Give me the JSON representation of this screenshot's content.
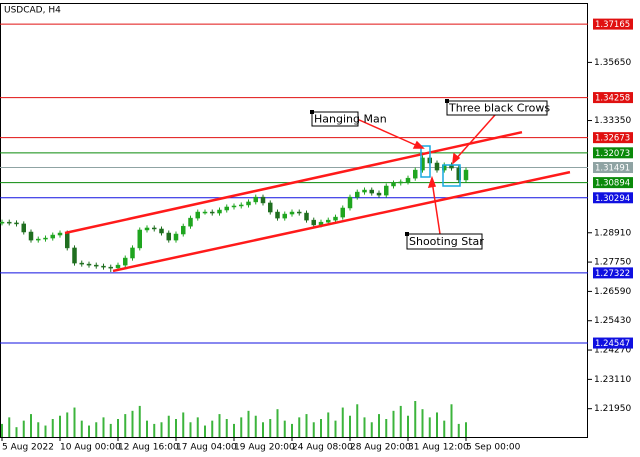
{
  "chart_data": {
    "type": "candlestick",
    "title": "USDCAD, H4",
    "categories": [
      "5 Aug 2022",
      null,
      null,
      null,
      null,
      null,
      null,
      null,
      "10 Aug 00:00",
      null,
      null,
      null,
      null,
      null,
      null,
      null,
      "12 Aug 16:00",
      null,
      null,
      null,
      null,
      null,
      null,
      null,
      "17 Aug 04:00",
      null,
      null,
      null,
      null,
      null,
      null,
      null,
      "19 Aug 20:00",
      null,
      null,
      null,
      null,
      null,
      null,
      null,
      "24 Aug 08:00",
      null,
      null,
      null,
      null,
      null,
      null,
      null,
      "28 Aug 20:00",
      null,
      null,
      null,
      null,
      null,
      null,
      null,
      "31 Aug 12:00",
      null,
      null,
      null,
      null,
      null,
      null,
      null,
      "5 Sep 00:00"
    ],
    "open": [
      1.293,
      1.2933,
      1.293,
      1.2926,
      1.2894,
      1.2862,
      1.2866,
      1.287,
      1.2882,
      1.289,
      1.2831,
      1.2771,
      1.2767,
      1.2763,
      1.2759,
      1.2755,
      1.2752,
      1.2763,
      1.2791,
      1.2831,
      1.2902,
      1.291,
      1.2906,
      1.289,
      1.2862,
      1.2886,
      1.2917,
      1.2949,
      1.2973,
      1.2973,
      1.2969,
      1.2981,
      1.2993,
      1.2997,
      1.3001,
      1.3013,
      1.3032,
      1.3009,
      1.2973,
      1.2949,
      1.2965,
      1.2973,
      1.2969,
      1.2941,
      1.2922,
      1.2933,
      1.2941,
      1.2953,
      1.2989,
      1.3032,
      1.3052,
      1.306,
      1.3048,
      1.304,
      1.3076,
      1.3088,
      1.3092,
      1.3107,
      1.3139,
      1.3187,
      1.3167,
      1.3139,
      1.3159,
      1.3147,
      1.31
    ],
    "high": [
      1.2943,
      1.2943,
      1.294,
      1.2936,
      1.2904,
      1.2876,
      1.288,
      1.2892,
      1.29,
      1.29,
      1.2841,
      1.2781,
      1.2777,
      1.2773,
      1.2769,
      1.2765,
      1.2773,
      1.2801,
      1.2841,
      1.2912,
      1.292,
      1.292,
      1.2916,
      1.29,
      1.2896,
      1.2927,
      1.2959,
      1.2983,
      1.2983,
      1.2983,
      1.2991,
      1.3003,
      1.3007,
      1.3011,
      1.3023,
      1.3042,
      1.3042,
      1.3019,
      1.2983,
      1.2975,
      1.2983,
      1.2983,
      1.2979,
      1.2951,
      1.2943,
      1.2951,
      1.2963,
      1.2999,
      1.3042,
      1.3062,
      1.307,
      1.307,
      1.3058,
      1.3086,
      1.3098,
      1.3102,
      1.3117,
      1.3149,
      1.3197,
      1.3197,
      1.3177,
      1.3169,
      1.3169,
      1.3157,
      1.3149
    ],
    "low": [
      1.292,
      1.292,
      1.2916,
      1.2884,
      1.2852,
      1.2852,
      1.2856,
      1.286,
      1.2872,
      1.2821,
      1.2761,
      1.2757,
      1.2753,
      1.2749,
      1.2745,
      1.2736,
      1.2742,
      1.2753,
      1.2781,
      1.2821,
      1.2892,
      1.2896,
      1.288,
      1.2852,
      1.2852,
      1.2876,
      1.2907,
      1.2939,
      1.2963,
      1.2959,
      1.2959,
      1.2971,
      1.2983,
      1.2987,
      1.2991,
      1.3003,
      1.2999,
      1.2963,
      1.2939,
      1.2939,
      1.2955,
      1.2959,
      1.2931,
      1.2912,
      1.2912,
      1.2923,
      1.2931,
      1.2943,
      1.2979,
      1.3022,
      1.3042,
      1.3038,
      1.303,
      1.303,
      1.3066,
      1.3078,
      1.3082,
      1.3097,
      1.3129,
      1.3157,
      1.3129,
      1.3129,
      1.3137,
      1.309,
      1.309
    ],
    "close": [
      1.2933,
      1.293,
      1.2926,
      1.2894,
      1.2862,
      1.2866,
      1.287,
      1.2882,
      1.289,
      1.2831,
      1.2771,
      1.2767,
      1.2763,
      1.2759,
      1.2755,
      1.2752,
      1.2763,
      1.2791,
      1.2831,
      1.2902,
      1.291,
      1.2906,
      1.289,
      1.2862,
      1.2886,
      1.2917,
      1.2949,
      1.2973,
      1.2973,
      1.2969,
      1.2981,
      1.2993,
      1.2997,
      1.3001,
      1.3013,
      1.3032,
      1.3009,
      1.2973,
      1.2949,
      1.2965,
      1.2973,
      1.2969,
      1.2941,
      1.2922,
      1.2933,
      1.2941,
      1.2953,
      1.2989,
      1.3032,
      1.3052,
      1.306,
      1.3048,
      1.304,
      1.3076,
      1.3088,
      1.3092,
      1.3107,
      1.3139,
      1.3187,
      1.3167,
      1.3139,
      1.3159,
      1.3147,
      1.31,
      1.3139
    ],
    "volume": [
      8,
      12,
      6,
      10,
      14,
      9,
      7,
      11,
      13,
      15,
      18,
      10,
      7,
      9,
      12,
      8,
      11,
      14,
      16,
      19,
      10,
      8,
      9,
      13,
      11,
      15,
      9,
      12,
      7,
      10,
      14,
      11,
      8,
      12,
      16,
      13,
      9,
      11,
      17,
      10,
      8,
      12,
      14,
      9,
      11,
      15,
      10,
      18,
      13,
      20,
      12,
      9,
      14,
      11,
      16,
      19,
      13,
      22,
      17,
      12,
      15,
      10,
      20,
      8,
      9
    ],
    "ylim": [
      1.2083,
      1.38
    ],
    "yticks": [
      {
        "value": 1.3565,
        "label": "1.35650"
      },
      {
        "value": 1.3335,
        "label": "1.33350"
      },
      {
        "value": 1.2891,
        "label": "1.28910"
      },
      {
        "value": 1.2775,
        "label": "1.27750"
      },
      {
        "value": 1.2659,
        "label": "1.26590"
      },
      {
        "value": 1.2543,
        "label": "1.25430"
      },
      {
        "value": 1.2427,
        "label": "1.24270"
      },
      {
        "value": 1.2311,
        "label": "1.23110"
      },
      {
        "value": 1.2195,
        "label": "1.21950"
      }
    ],
    "levels": [
      {
        "value": 1.37165,
        "color": "#e01010"
      },
      {
        "value": 1.34258,
        "color": "#e01010"
      },
      {
        "value": 1.32673,
        "color": "#e01010"
      },
      {
        "value": 1.32073,
        "color": "#0a8a0a"
      },
      {
        "value": 1.31491,
        "color": "#8fa3a3"
      },
      {
        "value": 1.30894,
        "color": "#0a8a0a"
      },
      {
        "value": 1.30294,
        "color": "#1010e0"
      },
      {
        "value": 1.27322,
        "color": "#1010e0"
      },
      {
        "value": 1.24547,
        "color": "#1010e0"
      }
    ],
    "trendlines": [
      {
        "x": [
          8.69,
          71.72
        ],
        "y": [
          1.289,
          1.3289
        ],
        "color": "#ff1a1a"
      },
      {
        "x": [
          15.31,
          78.34
        ],
        "y": [
          1.274,
          1.3131
        ],
        "color": "#ff1a1a"
      }
    ],
    "annotations": [
      "Hanging Man",
      "Three black Crows",
      "Shooting Star"
    ],
    "up_color": "#1fa51f",
    "down_color": "#1f6e1f",
    "volume_color": "#3cb43c",
    "grid": false
  }
}
